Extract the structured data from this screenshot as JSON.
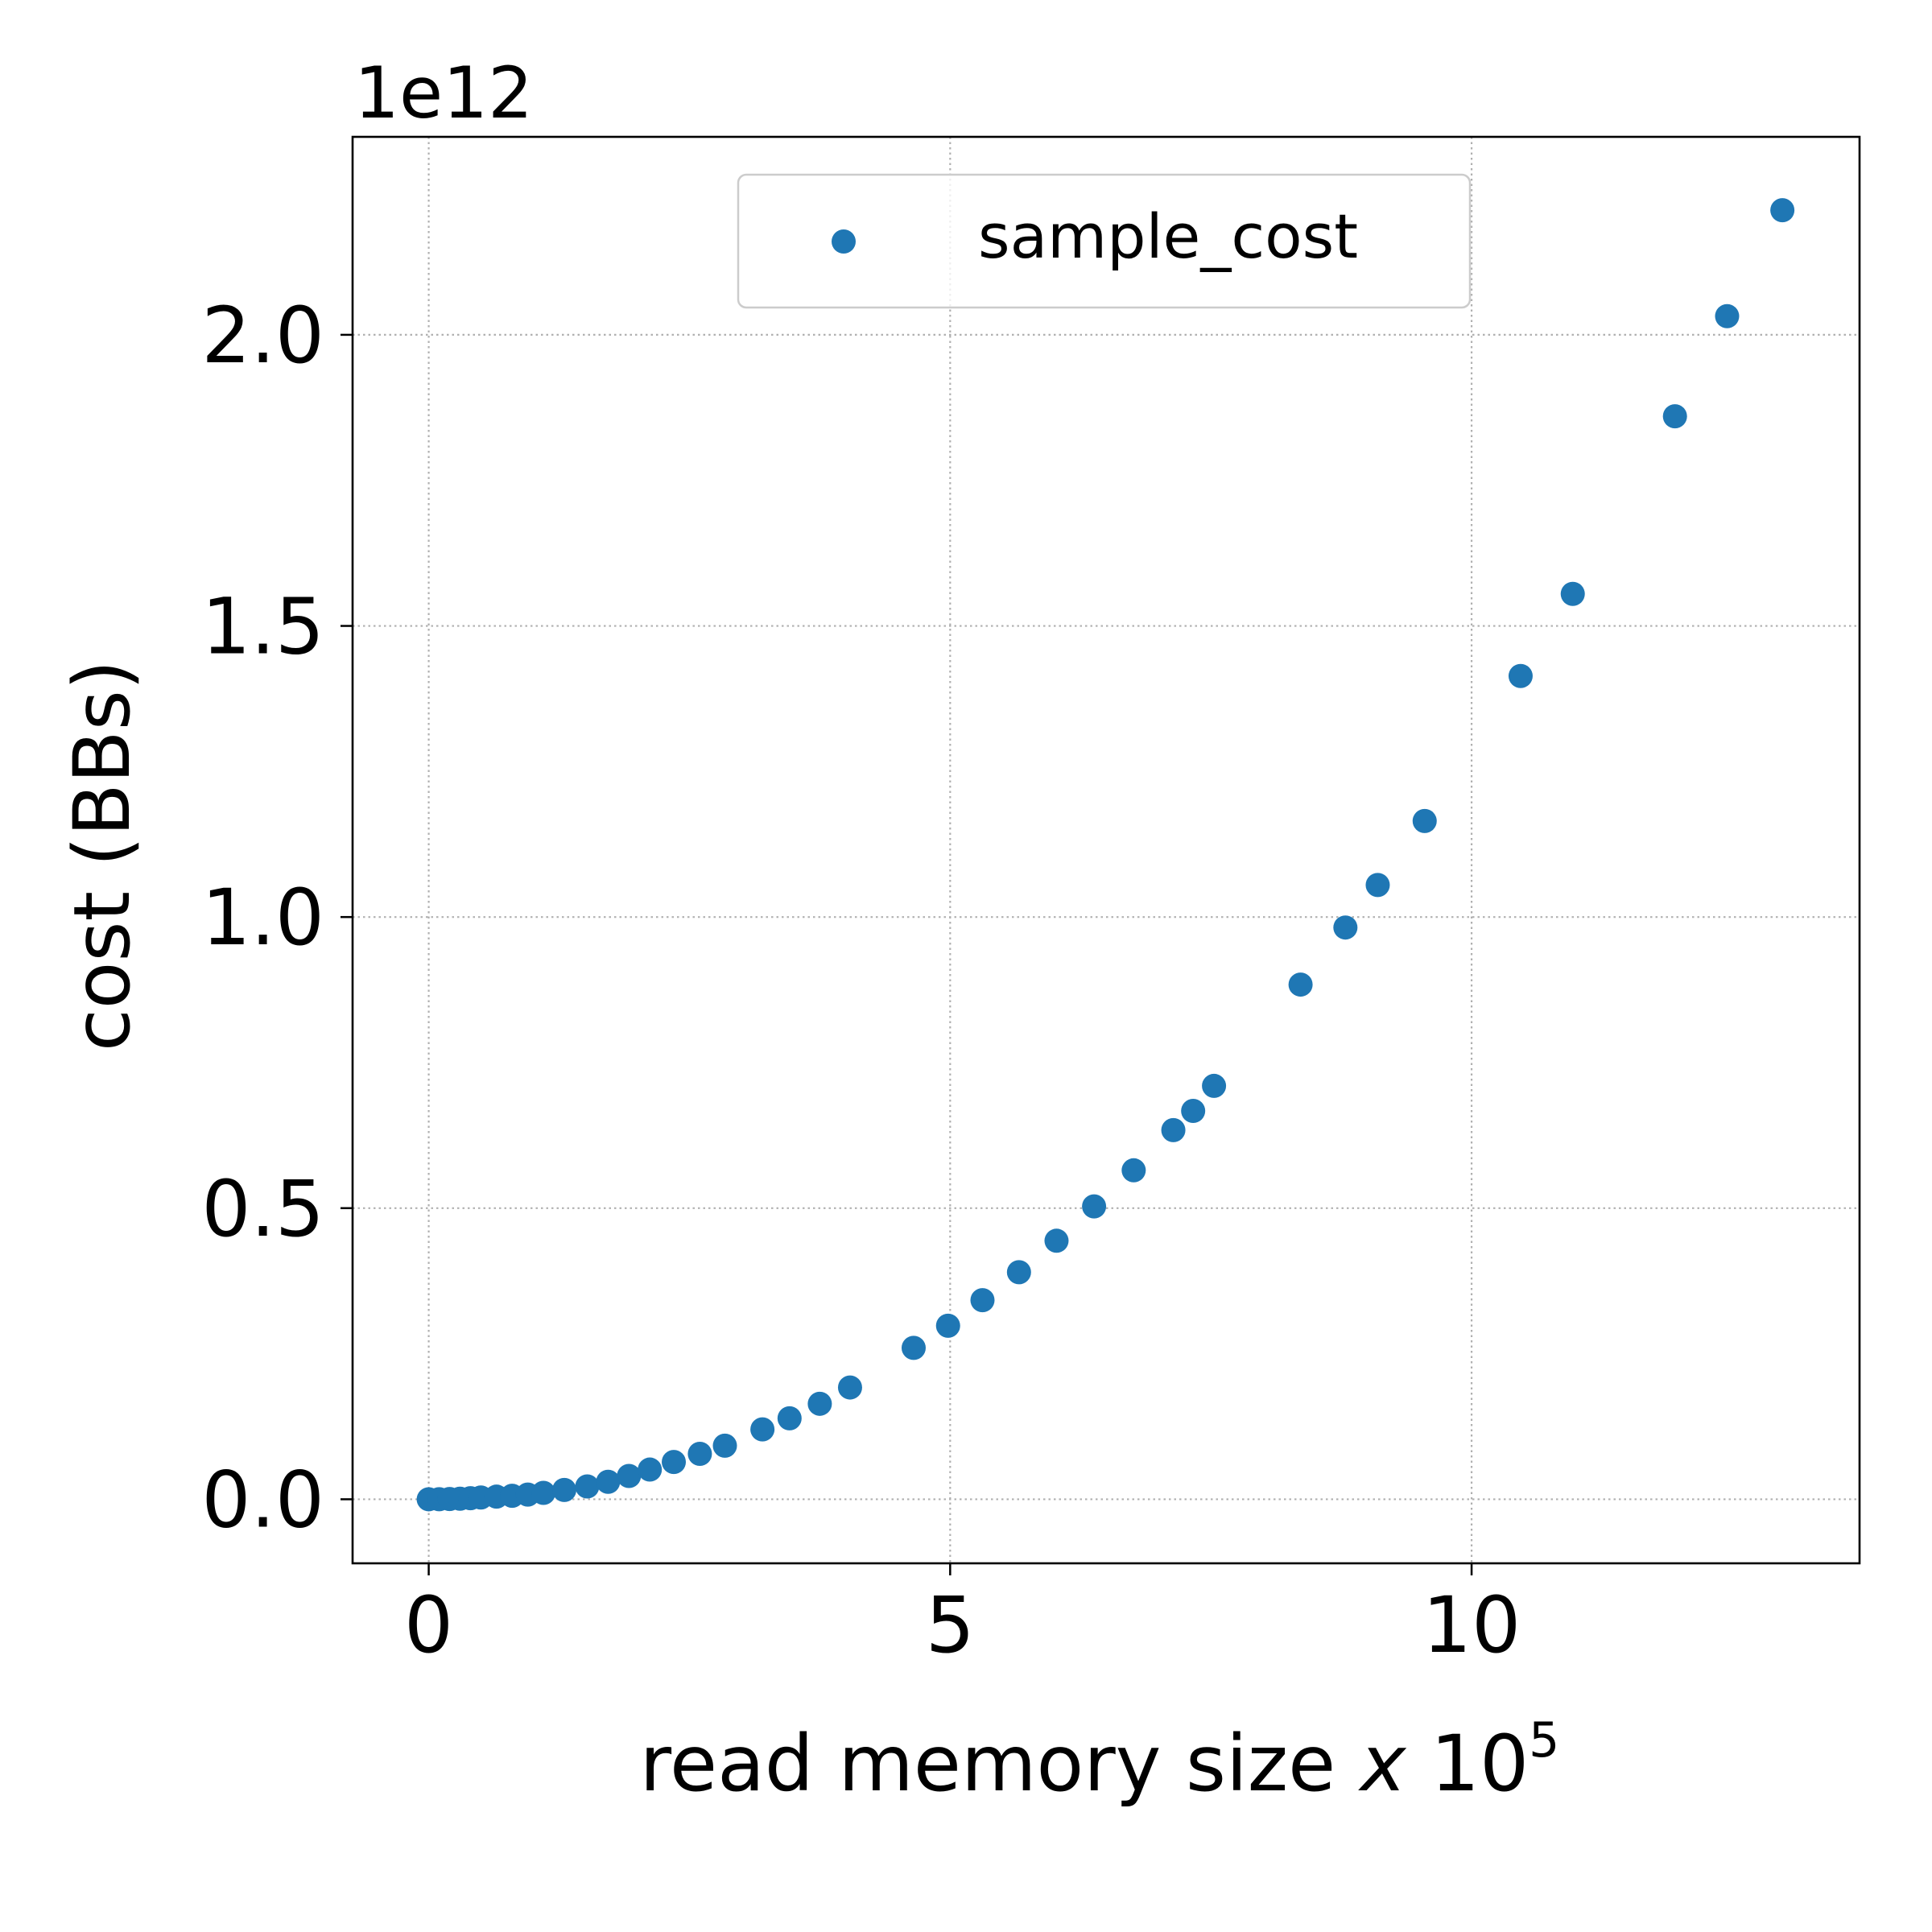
{
  "chart_data": {
    "type": "scatter",
    "title": "",
    "offset_text": "1e12",
    "xlabel_main": "read memory size ",
    "xlabel_var": "x",
    "xlabel_base": " 10",
    "xlabel_exp": "5",
    "ylabel": "cost (BBs)",
    "xlim": [
      -0.73,
      13.72
    ],
    "ylim": [
      -0.11,
      2.34
    ],
    "x_ticks": [
      0,
      5,
      10
    ],
    "x_tick_labels": [
      "0",
      "5",
      "10"
    ],
    "y_ticks": [
      0.0,
      0.5,
      1.0,
      1.5,
      2.0
    ],
    "y_tick_labels": [
      "0.0",
      "0.5",
      "1.0",
      "1.5",
      "2.0"
    ],
    "grid": true,
    "legend_position": "top-center",
    "series": [
      {
        "name": "sample_cost",
        "color": "#1f77b4",
        "points": [
          [
            0.0,
            0.0
          ],
          [
            0.1,
            0.0001
          ],
          [
            0.2,
            0.0004
          ],
          [
            0.3,
            0.001
          ],
          [
            0.4,
            0.0018
          ],
          [
            0.5,
            0.003
          ],
          [
            0.65,
            0.0045
          ],
          [
            0.8,
            0.006
          ],
          [
            0.95,
            0.008
          ],
          [
            1.1,
            0.011
          ],
          [
            1.3,
            0.016
          ],
          [
            1.52,
            0.022
          ],
          [
            1.72,
            0.03
          ],
          [
            1.92,
            0.04
          ],
          [
            2.12,
            0.051
          ],
          [
            2.35,
            0.064
          ],
          [
            2.6,
            0.078
          ],
          [
            2.84,
            0.092
          ],
          [
            3.2,
            0.12
          ],
          [
            3.46,
            0.139
          ],
          [
            3.75,
            0.164
          ],
          [
            4.04,
            0.192
          ],
          [
            4.65,
            0.26
          ],
          [
            4.98,
            0.298
          ],
          [
            5.31,
            0.342
          ],
          [
            5.66,
            0.39
          ],
          [
            6.02,
            0.444
          ],
          [
            6.38,
            0.503
          ],
          [
            6.76,
            0.565
          ],
          [
            7.14,
            0.634
          ],
          [
            7.33,
            0.667
          ],
          [
            7.53,
            0.71
          ],
          [
            8.36,
            0.884
          ],
          [
            8.79,
            0.982
          ],
          [
            9.1,
            1.055
          ],
          [
            9.55,
            1.165
          ],
          [
            10.47,
            1.414
          ],
          [
            10.97,
            1.555
          ],
          [
            11.95,
            1.86
          ],
          [
            12.45,
            2.032
          ],
          [
            12.98,
            2.214
          ]
        ]
      }
    ]
  }
}
